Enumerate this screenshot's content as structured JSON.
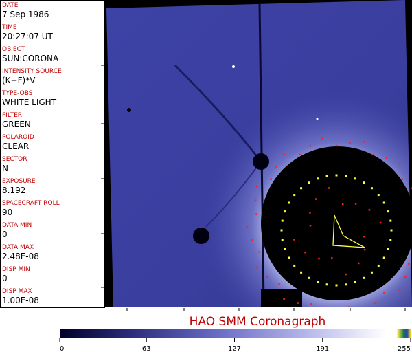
{
  "fields": [
    {
      "label": "DATE",
      "value": "7 Sep 1986"
    },
    {
      "label": "TIME",
      "value": "20:27:07 UT"
    },
    {
      "label": "OBJECT",
      "value": "SUN:CORONA"
    },
    {
      "label": "INTENSITY SOURCE",
      "value": "(K+F)*V"
    },
    {
      "label": "TYPE-OBS",
      "value": "WHITE LIGHT"
    },
    {
      "label": "FILTER",
      "value": "GREEN"
    },
    {
      "label": "POLAROID",
      "value": "CLEAR"
    },
    {
      "label": "SECTOR",
      "value": "N"
    },
    {
      "label": "EXPOSURE",
      "value": "8.192"
    },
    {
      "label": "SPACECRAFT ROLL",
      "value": "90"
    },
    {
      "label": "DATA MIN",
      "value": "0"
    },
    {
      "label": "DATA MAX",
      "value": "2.48E-08"
    },
    {
      "label": "DISP MIN",
      "value": "0"
    },
    {
      "label": "DISP MAX",
      "value": "1.00E-08"
    }
  ],
  "image_title": "HAO  SMM Coronagraph",
  "colorbar": {
    "lim": [
      0,
      255
    ],
    "ticks": [
      0,
      63,
      127,
      191,
      255
    ]
  }
}
